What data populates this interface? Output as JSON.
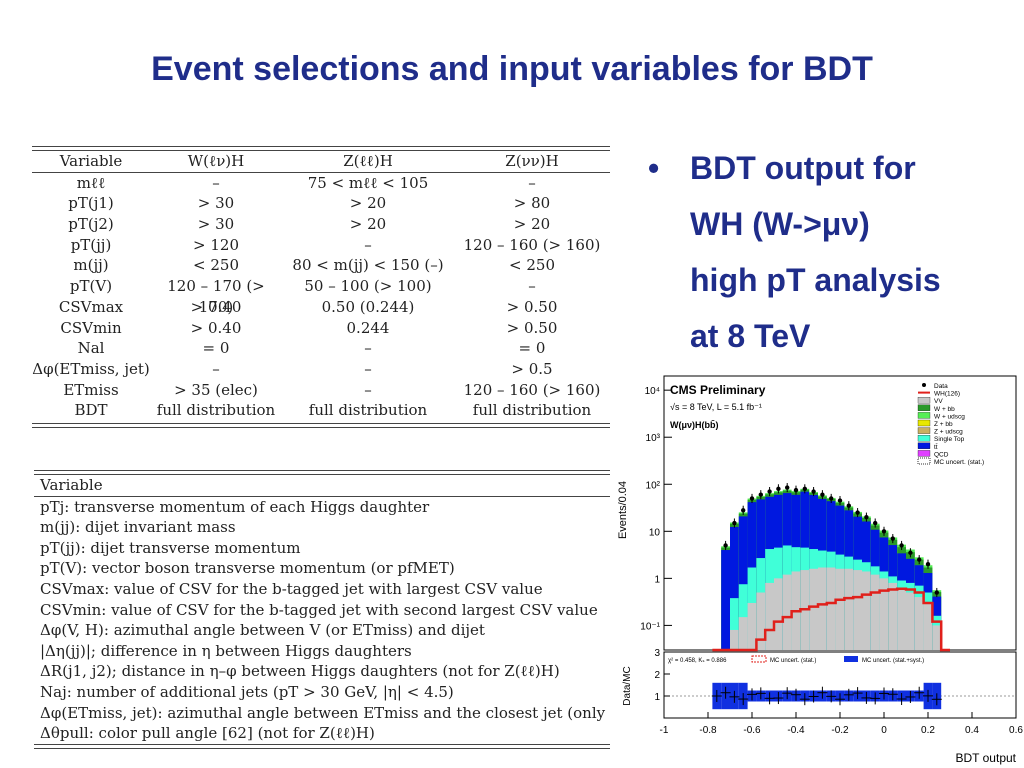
{
  "title": "Event selections and input variables for BDT",
  "table1": {
    "headers": [
      "Variable",
      "W(ℓν)H",
      "Z(ℓℓ)H",
      "Z(νν)H"
    ],
    "rows": [
      [
        "mℓℓ",
        "–",
        "75 < mℓℓ < 105",
        "–"
      ],
      [
        "pT(j1)",
        "> 30",
        "> 20",
        "> 80"
      ],
      [
        "pT(j2)",
        "> 30",
        "> 20",
        "> 20"
      ],
      [
        "pT(jj)",
        "> 120",
        "–",
        "120 – 160 (> 160)"
      ],
      [
        "m(jj)",
        "< 250",
        "80 < m(jj) < 150 (–)",
        "< 250"
      ],
      [
        "pT(V)",
        "120 – 170 (> 170)",
        "50 – 100 (> 100)",
        "–"
      ],
      [
        "CSVmax",
        "> 0.40",
        "0.50 (0.244)",
        "> 0.50"
      ],
      [
        "CSVmin",
        "> 0.40",
        "0.244",
        "> 0.50"
      ],
      [
        "Nal",
        "= 0",
        "–",
        "= 0"
      ],
      [
        "Δφ(ETmiss, jet)",
        "–",
        "–",
        "> 0.5"
      ],
      [
        "ETmiss",
        "> 35 (elec)",
        "–",
        "120 – 160 (> 160)"
      ],
      [
        "BDT",
        "full distribution",
        "full distribution",
        "full distribution"
      ]
    ]
  },
  "table2": {
    "header": "Variable",
    "rows": [
      "pTj: transverse momentum of each Higgs daughter",
      "m(jj): dijet invariant mass",
      "pT(jj): dijet transverse momentum",
      "pT(V): vector boson transverse momentum (or pfMET)",
      "CSVmax: value of CSV for the b-tagged jet with largest CSV value",
      "CSVmin: value of CSV for the b-tagged jet with second largest CSV value",
      "Δφ(V, H): azimuthal angle between V (or ETmiss) and dijet",
      "|Δη(jj)|; difference in η between Higgs daughters",
      "ΔR(j1, j2); distance in η–φ between Higgs daughters (not for Z(ℓℓ)H)",
      "Naj: number of additional jets (pT > 30 GeV, |η| < 4.5)",
      "Δφ(ETmiss, jet): azimuthal angle between ETmiss and the closest jet (only for Z(ν",
      "Δθpull: color pull angle [62] (not for Z(ℓℓ)H)"
    ]
  },
  "bullet": {
    "lines": [
      "BDT output for",
      "WH (W->μν)",
      "high pT analysis",
      "at 8 TeV"
    ]
  },
  "plot": {
    "header": "CMS Preliminary",
    "energy": "√s = 8 TeV, L = 5.1 fb⁻¹",
    "channel": "W(μν)H(bb̄)",
    "ylabel": "Events/0.04",
    "ratio_ylabel": "Data/MC",
    "xlabel": "BDT output",
    "ratio_info": "χ² = 0.458, Kₛ = 0.886",
    "ratio_legend_stat": "MC uncert. (stat.)",
    "ratio_legend_syst": "MC uncert. (stat.+syst.)",
    "legend": [
      "Data",
      "WH(126)",
      "VV",
      "W + bb",
      "W + udscg",
      "Z + bb",
      "Z + udscg",
      "Single Top",
      "tt̄",
      "QCD",
      "MC uncert. (stat.)"
    ],
    "colors": {
      "Data": "#000000",
      "WH(126)": "#e0201b",
      "VV": "#c8c8c8",
      "W + bb": "#2a9a2a",
      "W + udscg": "#55ee55",
      "Z + bb": "#e8e800",
      "Z + udscg": "#c8b060",
      "Single Top": "#40ffd8",
      "tt̄": "#0018e0",
      "QCD": "#e040ff",
      "MC uncert. (stat.)": "#333333"
    },
    "yticks": [
      "10⁻¹",
      "1",
      "10",
      "10²",
      "10³",
      "10⁴"
    ],
    "ratio_yticks": [
      "1",
      "2",
      "3"
    ],
    "xticks": [
      "-1",
      "-0.8",
      "-0.6",
      "-0.4",
      "-0.2",
      "0",
      "0.2",
      "0.4",
      "0.6"
    ]
  },
  "chart_data": {
    "type": "bar",
    "title": "CMS Preliminary",
    "xlabel": "BDT output",
    "ylabel": "Events/0.04",
    "yscale": "log",
    "xlim": [
      -1,
      0.6
    ],
    "ylim": [
      0.03,
      20000
    ],
    "x": [
      -0.76,
      -0.72,
      -0.68,
      -0.64,
      -0.6,
      -0.56,
      -0.52,
      -0.48,
      -0.44,
      -0.4,
      -0.36,
      -0.32,
      -0.28,
      -0.24,
      -0.2,
      -0.16,
      -0.12,
      -0.08,
      -0.04,
      0.0,
      0.04,
      0.08,
      0.12,
      0.16,
      0.2,
      0.24,
      0.28
    ],
    "series": [
      {
        "name": "VV",
        "values": [
          0,
          0,
          0.08,
          0.15,
          0.3,
          0.5,
          0.8,
          1.0,
          1.2,
          1.4,
          1.5,
          1.6,
          1.7,
          1.7,
          1.6,
          1.6,
          1.5,
          1.4,
          1.2,
          1.0,
          0.8,
          0.6,
          0.5,
          0.4,
          0.3,
          0.1,
          0
        ]
      },
      {
        "name": "Single Top",
        "values": [
          0,
          0,
          0.3,
          0.6,
          1.4,
          2.2,
          3.4,
          3.5,
          3.8,
          3.2,
          3.0,
          2.6,
          2.2,
          2.0,
          1.6,
          1.3,
          1.0,
          0.8,
          0.6,
          0.4,
          0.3,
          0.3,
          0.3,
          0.3,
          0.2,
          0.06,
          0
        ]
      },
      {
        "name": "tt̄",
        "values": [
          0,
          4.0,
          12,
          20,
          40,
          45,
          50,
          55,
          60,
          55,
          65,
          55,
          45,
          40,
          32,
          25,
          18,
          14,
          9,
          6,
          4,
          2.5,
          1.8,
          1.2,
          0.8,
          0.25,
          0
        ]
      },
      {
        "name": "W + bb",
        "values": [
          0,
          0.5,
          2,
          3,
          5,
          6,
          7,
          8,
          8,
          8,
          7,
          6,
          6,
          5,
          5,
          4,
          3.5,
          3,
          2.5,
          2,
          1.5,
          1.2,
          1,
          0.6,
          0.4,
          0.1,
          0
        ]
      },
      {
        "name": "W + udscg",
        "values": [
          0,
          0.3,
          1,
          1.5,
          3,
          3,
          3.5,
          4,
          4,
          4,
          3.5,
          3,
          3,
          2.5,
          2.5,
          2,
          1.8,
          1.5,
          1.2,
          1,
          0.8,
          0.6,
          0.5,
          0.3,
          0.2,
          0.05,
          0
        ]
      },
      {
        "name": "WH(126)",
        "values": [
          0,
          0,
          0,
          0,
          0.02,
          0.05,
          0.08,
          0.12,
          0.15,
          0.2,
          0.22,
          0.25,
          0.28,
          0.3,
          0.35,
          0.38,
          0.4,
          0.45,
          0.5,
          0.55,
          0.58,
          0.6,
          0.58,
          0.5,
          0.3,
          0.12,
          0
        ]
      },
      {
        "name": "Data",
        "values": [
          0,
          5,
          15,
          28,
          50,
          60,
          70,
          80,
          85,
          75,
          80,
          70,
          60,
          50,
          45,
          35,
          25,
          20,
          15,
          10,
          7,
          5,
          3.5,
          2.5,
          2,
          0.5,
          0
        ]
      }
    ]
  }
}
